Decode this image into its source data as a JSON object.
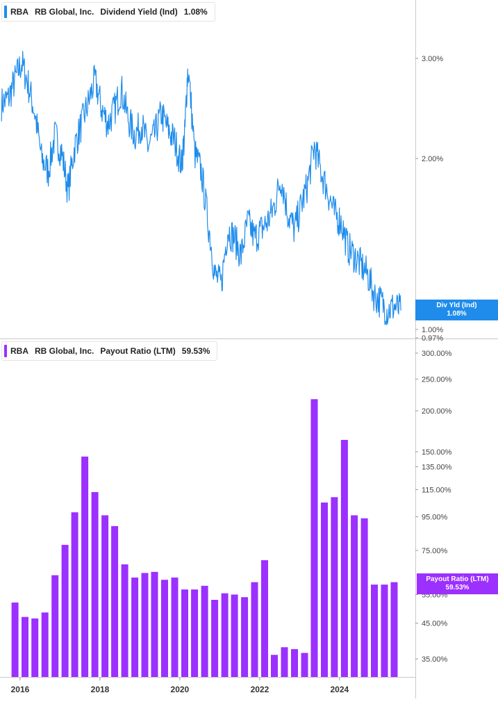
{
  "chart_data": [
    {
      "type": "line",
      "ticker": "RBA",
      "company": "RB Global, Inc.",
      "metric": "Dividend Yield (Ind)",
      "current_value": "1.08%",
      "tag_label": "Div Yld (Ind)",
      "tag_value": "1.08%",
      "y_scale": "log",
      "y_ticks": [
        "3.00%",
        "2.00%",
        "1.00%",
        "0.97%"
      ],
      "y_tick_values": [
        3.0,
        2.0,
        1.0,
        0.97
      ],
      "ylim": [
        0.97,
        3.9
      ],
      "color": "#1f8ceb",
      "x": [
        "2015-07",
        "2015-09",
        "2015-11",
        "2016-01",
        "2016-03",
        "2016-05",
        "2016-07",
        "2016-09",
        "2016-11",
        "2017-01",
        "2017-03",
        "2017-05",
        "2017-07",
        "2017-09",
        "2017-11",
        "2018-01",
        "2018-03",
        "2018-05",
        "2018-07",
        "2018-09",
        "2018-11",
        "2019-01",
        "2019-03",
        "2019-05",
        "2019-07",
        "2019-09",
        "2019-11",
        "2020-01",
        "2020-02",
        "2020-03",
        "2020-05",
        "2020-07",
        "2020-09",
        "2020-11",
        "2021-01",
        "2021-03",
        "2021-05",
        "2021-07",
        "2021-09",
        "2021-11",
        "2022-01",
        "2022-03",
        "2022-05",
        "2022-07",
        "2022-09",
        "2022-11",
        "2023-01",
        "2023-03",
        "2023-05",
        "2023-07",
        "2023-09",
        "2023-11",
        "2024-01",
        "2024-03",
        "2024-05",
        "2024-07",
        "2024-09",
        "2024-11",
        "2025-01",
        "2025-03",
        "2025-05",
        "2025-07"
      ],
      "values": [
        2.5,
        2.55,
        2.75,
        2.95,
        2.7,
        2.4,
        2.0,
        1.9,
        2.2,
        2.05,
        1.75,
        2.1,
        2.3,
        2.5,
        2.75,
        2.45,
        2.3,
        2.45,
        2.65,
        2.35,
        2.2,
        2.3,
        2.1,
        2.2,
        2.4,
        2.25,
        2.15,
        1.95,
        2.2,
        2.9,
        2.05,
        1.9,
        1.55,
        1.25,
        1.2,
        1.5,
        1.45,
        1.35,
        1.55,
        1.45,
        1.5,
        1.55,
        1.65,
        1.85,
        1.6,
        1.5,
        1.65,
        1.8,
        2.1,
        1.9,
        1.75,
        1.6,
        1.55,
        1.4,
        1.35,
        1.3,
        1.25,
        1.15,
        1.12,
        1.08,
        1.1,
        1.08
      ]
    },
    {
      "type": "bar",
      "ticker": "RBA",
      "company": "RB Global, Inc.",
      "metric": "Payout Ratio (LTM)",
      "current_value": "59.53%",
      "tag_label": "Payout Ratio (LTM)",
      "tag_value": "59.53%",
      "y_scale": "log",
      "y_ticks": [
        "300.00%",
        "250.00%",
        "200.00%",
        "150.00%",
        "135.00%",
        "115.00%",
        "95.00%",
        "75.00%",
        "55.00%",
        "45.00%",
        "35.00%"
      ],
      "y_tick_values": [
        300,
        250,
        200,
        150,
        135,
        115,
        95,
        75,
        55,
        45,
        35
      ],
      "ylim": [
        31,
        330
      ],
      "color": "#9b30ff",
      "x_ticks": [
        "2016",
        "2018",
        "2020",
        "2022",
        "2024"
      ],
      "categories": [
        "2015-Q4",
        "2016-Q1",
        "2016-Q2",
        "2016-Q3",
        "2016-Q4",
        "2017-Q1",
        "2017-Q2",
        "2017-Q3",
        "2017-Q4",
        "2018-Q1",
        "2018-Q2",
        "2018-Q3",
        "2018-Q4",
        "2019-Q1",
        "2019-Q2",
        "2019-Q3",
        "2019-Q4",
        "2020-Q1",
        "2020-Q2",
        "2020-Q3",
        "2020-Q4",
        "2021-Q1",
        "2021-Q2",
        "2021-Q3",
        "2021-Q4",
        "2022-Q1",
        "2022-Q2",
        "2022-Q3",
        "2022-Q4",
        "2023-Q1",
        "2023-Q2",
        "2023-Q3",
        "2023-Q4",
        "2024-Q1",
        "2024-Q2",
        "2024-Q3",
        "2024-Q4",
        "2025-Q1",
        "2025-Q2"
      ],
      "values": [
        52,
        47,
        46.5,
        48.5,
        63,
        78,
        98,
        145,
        113,
        96,
        89,
        68,
        62,
        64,
        64.5,
        61,
        62,
        57,
        57,
        58.5,
        53,
        55.5,
        55,
        54,
        60,
        70,
        36,
        38,
        37.5,
        36.5,
        217,
        105,
        109,
        163,
        96,
        94,
        59,
        59,
        60
      ]
    }
  ]
}
